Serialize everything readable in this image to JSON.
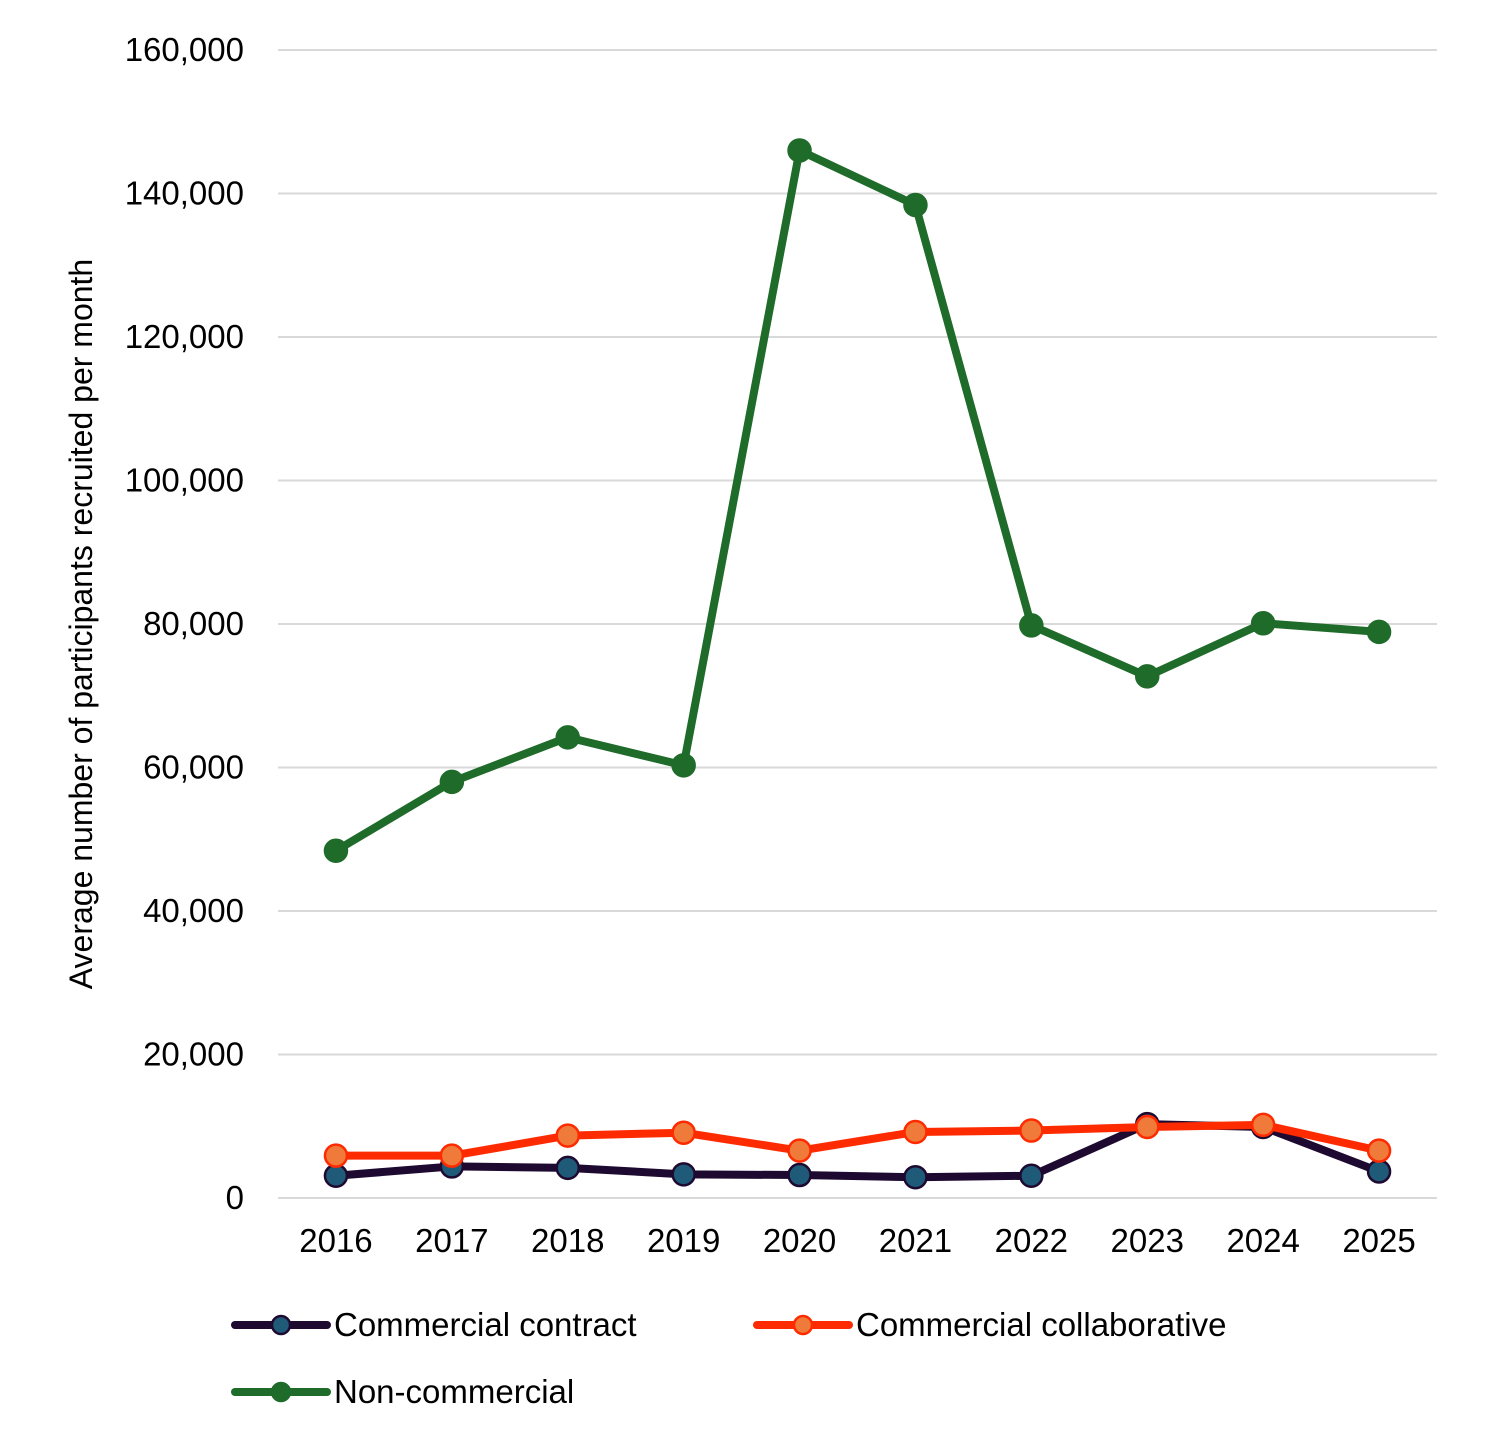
{
  "chart_data": {
    "type": "line",
    "title": "",
    "xlabel": "",
    "ylabel": "Average number of participants recruited per month",
    "categories": [
      "2016",
      "2017",
      "2018",
      "2019",
      "2020",
      "2021",
      "2022",
      "2023",
      "2024",
      "2025"
    ],
    "y_ticks": [
      0,
      20000,
      40000,
      60000,
      80000,
      100000,
      120000,
      140000,
      160000
    ],
    "y_tick_labels": [
      "0",
      "20,000",
      "40,000",
      "60,000",
      "80,000",
      "100,000",
      "120,000",
      "140,000",
      "160,000"
    ],
    "ylim": [
      0,
      160000
    ],
    "grid": "horizontal",
    "legend_position": "bottom",
    "series": [
      {
        "name": "Commercial contract",
        "line_color": "#1e0a30",
        "marker_fill": "#1f5a78",
        "values": [
          3100,
          4400,
          4200,
          3300,
          3200,
          2900,
          3100,
          10300,
          9900,
          3700
        ]
      },
      {
        "name": "Commercial collaborative",
        "line_color": "#ff2b00",
        "marker_fill": "#f07a3a",
        "values": [
          5900,
          5900,
          8700,
          9100,
          6600,
          9200,
          9400,
          9900,
          10200,
          6600
        ]
      },
      {
        "name": "Non-commercial",
        "line_color": "#1e6b2a",
        "marker_fill": "#1e6b2a",
        "values": [
          48400,
          58000,
          64200,
          60300,
          146000,
          138400,
          79800,
          72700,
          80100,
          78900
        ]
      }
    ]
  }
}
